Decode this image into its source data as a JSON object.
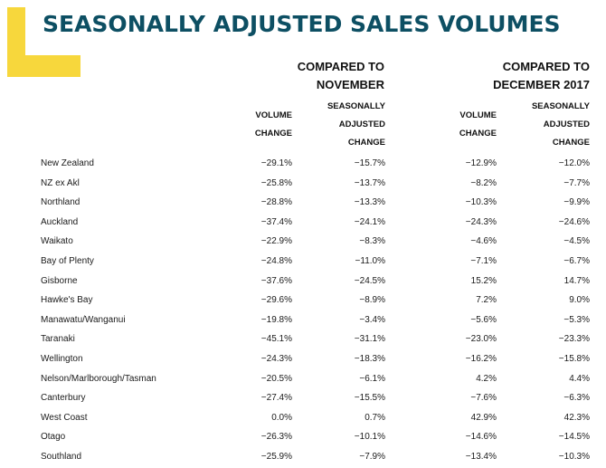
{
  "title": "SEASONALLY ADJUSTED SALES VOLUMES",
  "colors": {
    "title": "#0d4f63",
    "accent": "#f7d73c"
  },
  "chart_data": {
    "type": "table",
    "title": "SEASONALLY ADJUSTED SALES VOLUMES",
    "groups": [
      {
        "line1": "COMPARED TO",
        "line2": "NOVEMBER"
      },
      {
        "line1": "COMPARED TO",
        "line2": "DECEMBER 2017"
      }
    ],
    "columns": [
      {
        "lines": [
          "VOLUME",
          "CHANGE"
        ]
      },
      {
        "lines": [
          "SEASONALLY",
          "ADJUSTED",
          "CHANGE"
        ]
      },
      {
        "lines": [
          "VOLUME",
          "CHANGE"
        ]
      },
      {
        "lines": [
          "SEASONALLY",
          "ADJUSTED",
          "CHANGE"
        ]
      }
    ],
    "rows": [
      {
        "region": "New Zealand",
        "values": [
          "−29.1%",
          "−15.7%",
          "−12.9%",
          "−12.0%"
        ]
      },
      {
        "region": "NZ ex Akl",
        "values": [
          "−25.8%",
          "−13.7%",
          "−8.2%",
          "−7.7%"
        ]
      },
      {
        "region": "Northland",
        "values": [
          "−28.8%",
          "−13.3%",
          "−10.3%",
          "−9.9%"
        ]
      },
      {
        "region": "Auckland",
        "values": [
          "−37.4%",
          "−24.1%",
          "−24.3%",
          "−24.6%"
        ]
      },
      {
        "region": "Waikato",
        "values": [
          "−22.9%",
          "−8.3%",
          "−4.6%",
          "−4.5%"
        ]
      },
      {
        "region": "Bay of Plenty",
        "values": [
          "−24.8%",
          "−11.0%",
          "−7.1%",
          "−6.7%"
        ]
      },
      {
        "region": "Gisborne",
        "values": [
          "−37.6%",
          "−24.5%",
          "15.2%",
          "14.7%"
        ]
      },
      {
        "region": "Hawke's Bay",
        "values": [
          "−29.6%",
          "−8.9%",
          "7.2%",
          "9.0%"
        ]
      },
      {
        "region": "Manawatu/Wanganui",
        "values": [
          "−19.8%",
          "−3.4%",
          "−5.6%",
          "−5.3%"
        ]
      },
      {
        "region": "Taranaki",
        "values": [
          "−45.1%",
          "−31.1%",
          "−23.0%",
          "−23.3%"
        ]
      },
      {
        "region": "Wellington",
        "values": [
          "−24.3%",
          "−18.3%",
          "−16.2%",
          "−15.8%"
        ]
      },
      {
        "region": "Nelson/Marlborough/Tasman",
        "values": [
          "−20.5%",
          "−6.1%",
          "4.2%",
          "4.4%"
        ]
      },
      {
        "region": "Canterbury",
        "values": [
          "−27.4%",
          "−15.5%",
          "−7.6%",
          "−6.3%"
        ]
      },
      {
        "region": "West Coast",
        "values": [
          "0.0%",
          "0.7%",
          "42.9%",
          "42.3%"
        ]
      },
      {
        "region": "Otago",
        "values": [
          "−26.3%",
          "−10.1%",
          "−14.6%",
          "−14.5%"
        ]
      },
      {
        "region": "Southland",
        "values": [
          "−25.9%",
          "−7.9%",
          "−13.4%",
          "−10.3%"
        ]
      }
    ]
  }
}
